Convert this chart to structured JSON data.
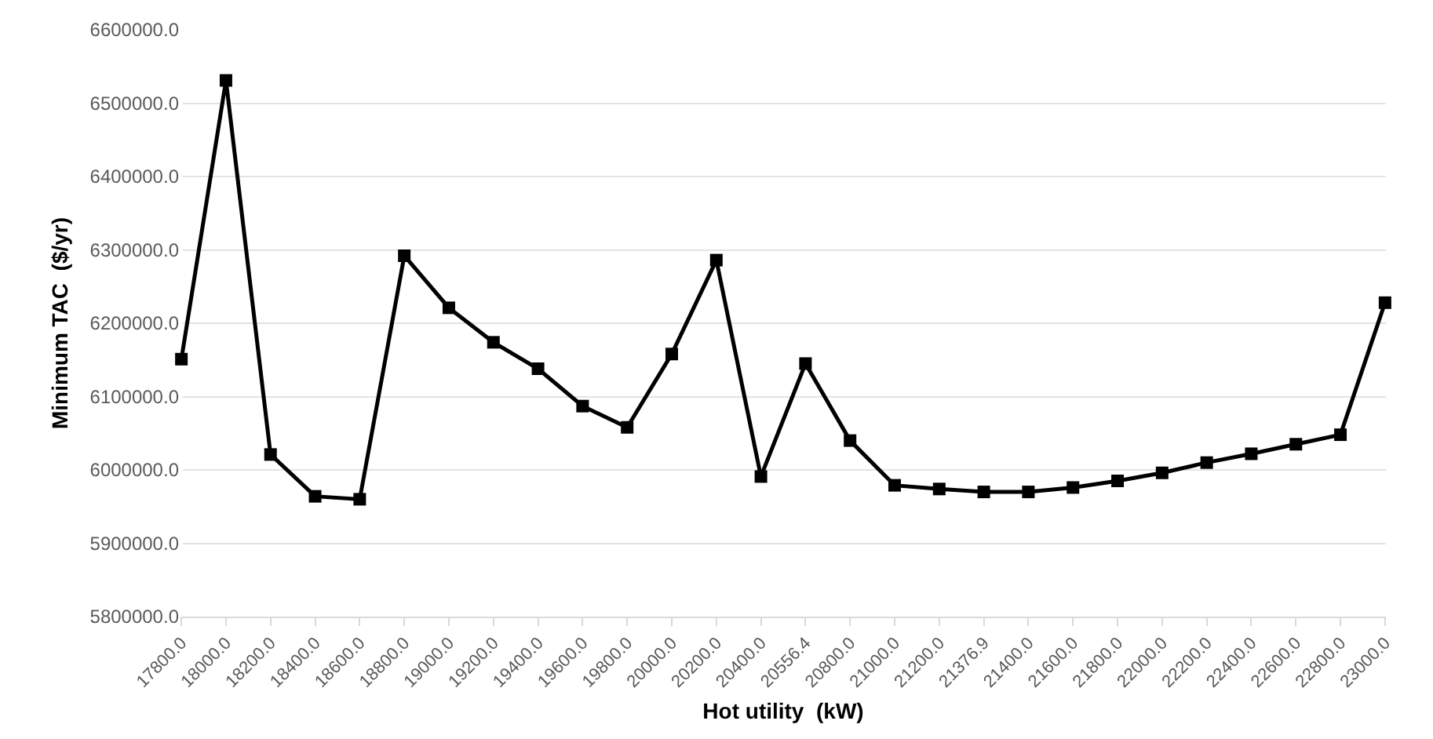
{
  "chart_data": {
    "type": "line",
    "xlabel": "Hot utility  (kW)",
    "ylabel": "Minimum TAC  ($/yr)",
    "categories": [
      "17800.0",
      "18000.0",
      "18200.0",
      "18400.0",
      "18600.0",
      "18800.0",
      "19000.0",
      "19200.0",
      "19400.0",
      "19600.0",
      "19800.0",
      "20000.0",
      "20200.0",
      "20400.0",
      "20556.4",
      "20800.0",
      "21000.0",
      "21200.0",
      "21376.9",
      "21400.0",
      "21600.0",
      "21800.0",
      "22000.0",
      "22200.0",
      "22400.0",
      "22600.0",
      "22800.0",
      "23000.0"
    ],
    "series": [
      {
        "color": "#000000",
        "values": [
          6151000,
          6531000,
          6021000,
          5964000,
          5960000,
          6292000,
          6221000,
          6174000,
          6138000,
          6087000,
          6058000,
          6158000,
          6286000,
          5991000,
          6145000,
          6040000,
          5979000,
          5974000,
          5970000,
          5970000,
          5976000,
          5985000,
          5996000,
          6010000,
          6022000,
          6035000,
          6048000,
          6228000
        ]
      }
    ],
    "ylim": [
      5800000,
      6600000
    ],
    "yticks": [
      {
        "value": 5800000,
        "label": "5800000.0"
      },
      {
        "value": 5900000,
        "label": "5900000.0"
      },
      {
        "value": 6000000,
        "label": "6000000.0"
      },
      {
        "value": 6100000,
        "label": "6100000.0"
      },
      {
        "value": 6200000,
        "label": "6200000.0"
      },
      {
        "value": 6300000,
        "label": "6300000.0"
      },
      {
        "value": 6400000,
        "label": "6400000.0"
      },
      {
        "value": 6500000,
        "label": "6500000.0"
      },
      {
        "value": 6600000,
        "label": "6600000.0"
      }
    ],
    "grid": "y",
    "marker": "square",
    "line_style": "solid"
  }
}
